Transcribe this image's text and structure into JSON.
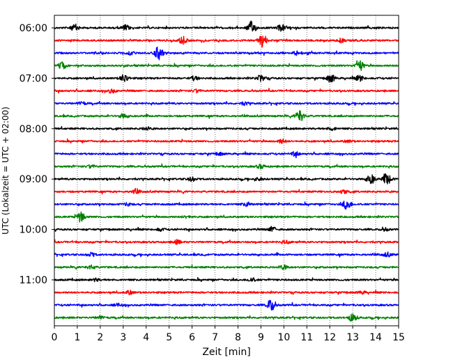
{
  "chart_data": {
    "type": "line",
    "xlabel": "Zeit  [min]",
    "ylabel": "UTC (Lokalzeit = UTC + 02:00)",
    "xlim": [
      0,
      15
    ],
    "x_ticks": [
      0,
      1,
      2,
      3,
      4,
      5,
      6,
      7,
      8,
      9,
      10,
      11,
      12,
      13,
      14,
      15
    ],
    "y_tick_labels": [
      "06:00",
      "07:00",
      "08:00",
      "09:00",
      "10:00",
      "11:00"
    ],
    "grid": "vertical dotted lines at each minute",
    "trace_interval_minutes": 15,
    "traces": [
      {
        "time": "06:00",
        "color": "#000000",
        "events": [
          [
            0.9,
            0.5
          ],
          [
            3.1,
            0.4
          ],
          [
            8.6,
            1.0
          ],
          [
            9.9,
            0.5
          ]
        ]
      },
      {
        "time": "06:15",
        "color": "#ff0000",
        "events": [
          [
            5.6,
            0.6
          ],
          [
            9.05,
            1.0
          ],
          [
            12.5,
            0.3
          ]
        ]
      },
      {
        "time": "06:30",
        "color": "#0000ff",
        "events": [
          [
            4.55,
            1.0
          ],
          [
            3.3,
            0.2
          ],
          [
            10.6,
            0.3
          ]
        ]
      },
      {
        "time": "06:45",
        "color": "#008000",
        "events": [
          [
            0.35,
            0.5
          ],
          [
            13.3,
            0.8
          ]
        ]
      },
      {
        "time": "07:00",
        "color": "#000000",
        "events": [
          [
            3.05,
            0.6
          ],
          [
            6.1,
            0.3
          ],
          [
            9.0,
            0.5
          ],
          [
            12.05,
            0.6
          ],
          [
            13.3,
            0.4
          ]
        ]
      },
      {
        "time": "07:15",
        "color": "#ff0000",
        "events": [
          [
            2.5,
            0.3
          ],
          [
            6.2,
            0.2
          ]
        ]
      },
      {
        "time": "07:30",
        "color": "#0000ff",
        "events": [
          [
            1.2,
            0.2
          ],
          [
            8.3,
            0.2
          ]
        ]
      },
      {
        "time": "07:45",
        "color": "#008000",
        "events": [
          [
            3.0,
            0.3
          ],
          [
            10.7,
            0.9
          ]
        ]
      },
      {
        "time": "08:00",
        "color": "#000000",
        "events": [
          [
            4.0,
            0.2
          ],
          [
            12.1,
            0.3
          ]
        ]
      },
      {
        "time": "08:15",
        "color": "#ff0000",
        "events": [
          [
            9.9,
            0.3
          ],
          [
            12.8,
            0.2
          ]
        ]
      },
      {
        "time": "08:30",
        "color": "#0000ff",
        "events": [
          [
            7.2,
            0.2
          ],
          [
            10.5,
            0.3
          ]
        ]
      },
      {
        "time": "08:45",
        "color": "#008000",
        "events": [
          [
            1.6,
            0.2
          ],
          [
            9.0,
            0.3
          ]
        ]
      },
      {
        "time": "09:00",
        "color": "#000000",
        "events": [
          [
            6.0,
            0.3
          ],
          [
            8.9,
            0.2
          ],
          [
            13.8,
            0.7
          ],
          [
            14.5,
            0.9
          ]
        ]
      },
      {
        "time": "09:15",
        "color": "#ff0000",
        "events": [
          [
            3.55,
            0.3
          ],
          [
            12.6,
            0.3
          ]
        ]
      },
      {
        "time": "09:30",
        "color": "#0000ff",
        "events": [
          [
            3.2,
            0.2
          ],
          [
            8.4,
            0.3
          ],
          [
            12.75,
            0.8
          ]
        ]
      },
      {
        "time": "09:45",
        "color": "#008000",
        "events": [
          [
            1.15,
            0.8
          ],
          [
            5.8,
            0.2
          ]
        ]
      },
      {
        "time": "10:00",
        "color": "#000000",
        "events": [
          [
            4.6,
            0.2
          ],
          [
            9.5,
            0.4
          ],
          [
            14.4,
            0.2
          ]
        ]
      },
      {
        "time": "10:15",
        "color": "#ff0000",
        "events": [
          [
            5.35,
            0.3
          ],
          [
            10.1,
            0.2
          ]
        ]
      },
      {
        "time": "10:30",
        "color": "#0000ff",
        "events": [
          [
            1.6,
            0.3
          ],
          [
            14.5,
            0.3
          ]
        ]
      },
      {
        "time": "10:45",
        "color": "#008000",
        "events": [
          [
            1.6,
            0.3
          ],
          [
            10.0,
            0.3
          ]
        ]
      },
      {
        "time": "11:00",
        "color": "#000000",
        "events": [
          [
            1.8,
            0.2
          ],
          [
            8.6,
            0.3
          ]
        ]
      },
      {
        "time": "11:15",
        "color": "#ff0000",
        "events": [
          [
            3.3,
            0.3
          ],
          [
            13.4,
            0.2
          ]
        ]
      },
      {
        "time": "11:30",
        "color": "#0000ff",
        "events": [
          [
            9.45,
            0.9
          ],
          [
            2.8,
            0.2
          ]
        ]
      },
      {
        "time": "11:45",
        "color": "#008000",
        "events": [
          [
            13.0,
            0.6
          ],
          [
            2.0,
            0.2
          ]
        ]
      }
    ]
  }
}
